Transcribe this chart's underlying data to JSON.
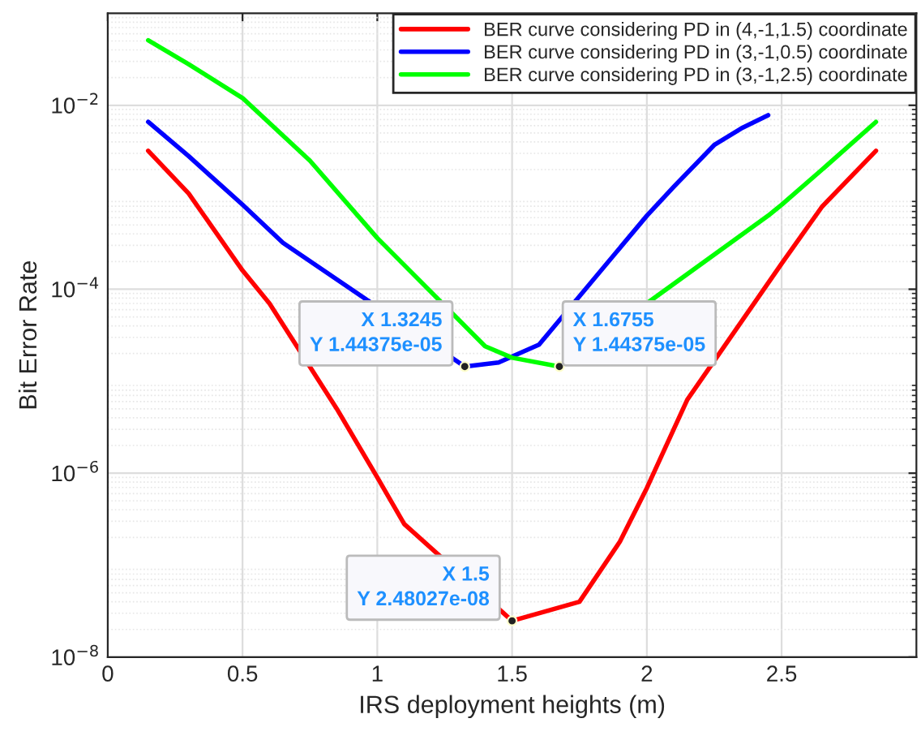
{
  "chart_data": {
    "type": "line",
    "xlabel": "IRS deployment heights (m)",
    "ylabel": "Bit Error Rate",
    "series": [
      {
        "name": "BER curve considering PD in (4,-1,1.5) coordinate",
        "color": "#ff0000",
        "x": [
          0.15,
          0.3,
          0.5,
          0.6,
          0.85,
          1,
          1.1,
          1.5,
          1.75,
          1.9,
          2,
          2.15,
          2.5,
          2.65,
          2.85
        ],
        "values": [
          0.0032,
          0.0011,
          0.00016,
          7e-05,
          5e-06,
          9e-07,
          2.8e-07,
          2.48027e-08,
          4e-08,
          1.8e-07,
          6.9e-07,
          6.3e-06,
          0.00019,
          0.00079,
          0.0032
        ]
      },
      {
        "name": "BER curve considering PD in (3,-1,0.5) coordinate",
        "color": "#0000ff",
        "x": [
          0.15,
          0.3,
          0.5,
          0.65,
          1.3245,
          1.45,
          1.6,
          2,
          2.1,
          2.25,
          2.35,
          2.45
        ],
        "values": [
          0.0066,
          0.0028,
          0.00083,
          0.00032,
          1.44375e-05,
          1.6e-05,
          2.5e-05,
          0.00063,
          0.0013,
          0.0037,
          0.0056,
          0.0078
        ]
      },
      {
        "name": "BER curve considering PD in (3,-1,2.5) coordinate",
        "color": "#00ff00",
        "x": [
          0.15,
          0.3,
          0.5,
          0.75,
          1,
          1.4,
          1.5,
          1.6755,
          2.45,
          2.5,
          2.65,
          2.85
        ],
        "values": [
          0.051,
          0.028,
          0.012,
          0.0025,
          0.00036,
          2.4e-05,
          1.8e-05,
          1.44375e-05,
          0.00063,
          0.00083,
          0.002,
          0.0066
        ]
      }
    ],
    "log": "y",
    "xlim": [
      0,
      3
    ],
    "xticks": [
      0,
      0.5,
      1,
      1.5,
      2,
      2.5
    ],
    "ylim": [
      1e-08,
      0.1
    ],
    "yticks": [
      {
        "value": 1e-08,
        "label": "10$^{−8}$"
      },
      {
        "value": 1e-06,
        "label": "10$^{−6}$"
      },
      {
        "value": 0.0001,
        "label": "10$^{−4}$"
      },
      {
        "value": 0.01,
        "label": "10$^{−2}$"
      }
    ],
    "grid": true,
    "legend": "top right",
    "marker": "none",
    "line_style": "solid",
    "annotations": [
      {
        "text": "X 1.3245\nY 1.44375e-05",
        "x": 1.3245,
        "y": 1.44375e-05
      },
      {
        "text": "X 1.6755\nY 1.44375e-05",
        "x": 1.6755,
        "y": 1.44375e-05
      },
      {
        "text": "X 1.5\nY 2.48027e-08",
        "x": 1.5,
        "y": 2.48027e-08
      }
    ]
  }
}
